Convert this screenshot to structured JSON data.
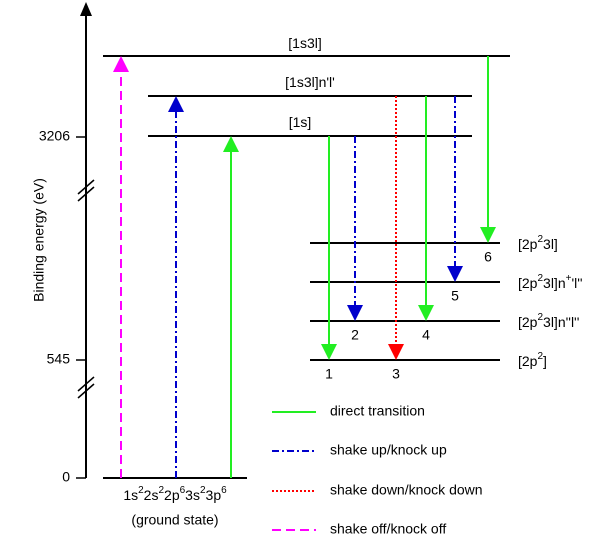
{
  "axis": {
    "label": "Binding energy (eV)",
    "ticks": [
      3206,
      545,
      0
    ]
  },
  "levels": [
    {
      "parts": [
        {
          "text": "[1s3l]"
        }
      ]
    },
    {
      "parts": [
        {
          "text": "[1s3l]n'l'"
        }
      ]
    },
    {
      "parts": [
        {
          "text": "[1s]"
        }
      ]
    },
    {
      "parts": [
        {
          "text": "[2p"
        },
        {
          "text": "2",
          "sup": true
        },
        {
          "text": "3l]"
        }
      ]
    },
    {
      "parts": [
        {
          "text": "[2p"
        },
        {
          "text": "2",
          "sup": true
        },
        {
          "text": "3l]n"
        },
        {
          "text": "+",
          "sup": true
        },
        {
          "text": "'l''"
        }
      ]
    },
    {
      "parts": [
        {
          "text": "[2p"
        },
        {
          "text": "2",
          "sup": true
        },
        {
          "text": "3l]n''l''"
        }
      ]
    },
    {
      "parts": [
        {
          "text": "[2p"
        },
        {
          "text": "2",
          "sup": true
        },
        {
          "text": "]"
        }
      ]
    }
  ],
  "ground_state": {
    "configuration": [
      {
        "text": "1s"
      },
      {
        "text": "2",
        "sup": true
      },
      {
        "text": "2s"
      },
      {
        "text": "2",
        "sup": true
      },
      {
        "text": "2p"
      },
      {
        "text": "6",
        "sup": true
      },
      {
        "text": "3s"
      },
      {
        "text": "2",
        "sup": true
      },
      {
        "text": "3p"
      },
      {
        "text": "6",
        "sup": true
      }
    ],
    "note": "(ground state)"
  },
  "transitions": [
    {
      "label": "1"
    },
    {
      "label": "2"
    },
    {
      "label": "3"
    },
    {
      "label": "4"
    },
    {
      "label": "5"
    },
    {
      "label": "6"
    }
  ],
  "legend": [
    {
      "label": "direct transition"
    },
    {
      "label": "shake up/knock up"
    },
    {
      "label": "shake down/knock down"
    },
    {
      "label": "shake off/knock off"
    }
  ]
}
